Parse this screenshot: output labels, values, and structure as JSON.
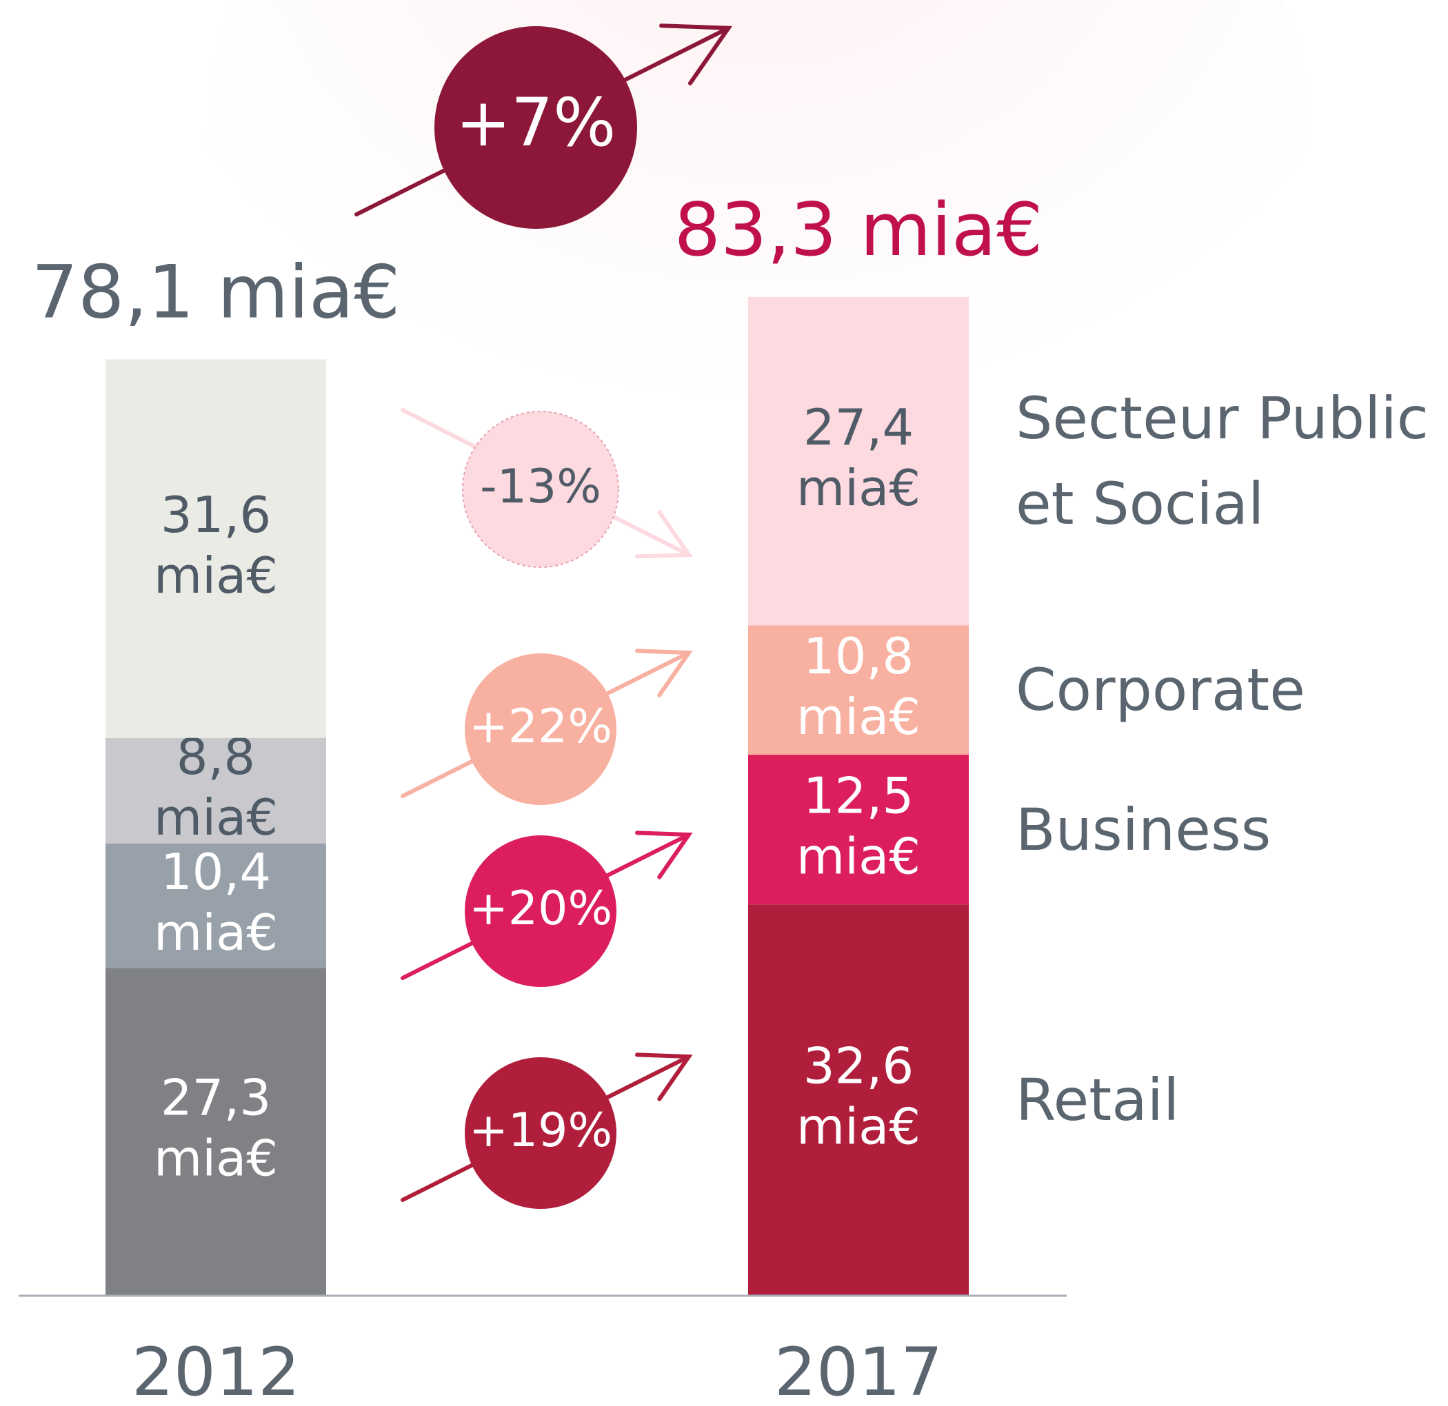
{
  "chart_data": {
    "type": "stacked_bar",
    "categories": [
      "2012",
      "2017"
    ],
    "totals": [
      78.1,
      83.3
    ],
    "total_labels": [
      "78,1 mia€",
      "83,3 mia€"
    ],
    "total_label_colors": [
      "#5a6570",
      "#c0104a"
    ],
    "total_change": 7,
    "total_change_label": "+7%",
    "total_change_color": "#8c1738",
    "series": [
      {
        "name": "Retail",
        "colors": [
          "#808185",
          "#b01e3c"
        ],
        "label_colors": [
          "#ffffff",
          "#ffffff"
        ],
        "values": [
          27.3,
          32.6
        ],
        "value_labels": [
          "27,3\nmia€",
          "32,6\nmia€"
        ],
        "change": 19,
        "change_label": "+19%"
      },
      {
        "name": "Business",
        "colors": [
          "#98a0aa",
          "#dc1f5c"
        ],
        "label_colors": [
          "#ffffff",
          "#ffffff"
        ],
        "values": [
          10.4,
          12.5
        ],
        "value_labels": [
          "10,4\nmia€",
          "12,5\nmia€"
        ],
        "change": 20,
        "change_label": "+20%"
      },
      {
        "name": "Corporate",
        "colors": [
          "#c8c8cd",
          "#f8b0a0"
        ],
        "label_colors": [
          "#4f5b66",
          "#ffffff"
        ],
        "values": [
          8.8,
          10.8
        ],
        "value_labels": [
          "8,8\nmia€",
          "10,8\nmia€"
        ],
        "change": 22,
        "change_label": "+22%"
      },
      {
        "name": "Secteur Public et Social",
        "colors": [
          "#ebebe6",
          "#fdd9e0"
        ],
        "label_colors": [
          "#4f5b66",
          "#4f5b66"
        ],
        "values": [
          31.6,
          27.4
        ],
        "value_labels": [
          "31,6\nmia€",
          "27,4\nmia€"
        ],
        "change": -13,
        "change_label": "-13%"
      }
    ]
  }
}
